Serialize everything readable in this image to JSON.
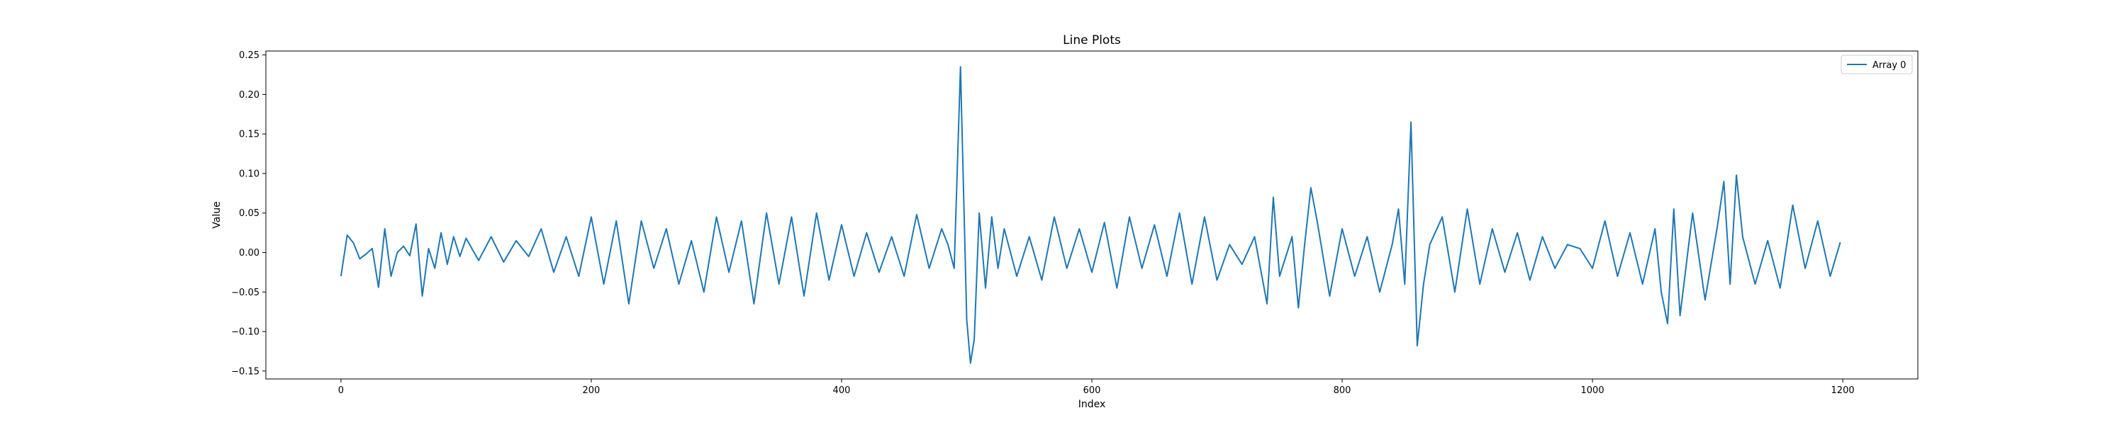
{
  "chart_data": {
    "type": "line",
    "title": "Line Plots",
    "xlabel": "Index",
    "ylabel": "Value",
    "xlim": [
      -60,
      1260
    ],
    "ylim": [
      -0.16,
      0.255
    ],
    "x_ticks": [
      0,
      200,
      400,
      600,
      800,
      1000,
      1200
    ],
    "y_ticks": [
      -0.15,
      -0.1,
      -0.05,
      0.0,
      0.05,
      0.1,
      0.15,
      0.2,
      0.25
    ],
    "x_tick_labels": [
      "0",
      "200",
      "400",
      "600",
      "800",
      "1000",
      "1200"
    ],
    "y_tick_labels": [
      "−0.15",
      "−0.10",
      "−0.05",
      "0.00",
      "0.05",
      "0.10",
      "0.15",
      "0.20",
      "0.25"
    ],
    "grid": false,
    "legend_position": "top-right",
    "colors": {
      "series": "#1f77b4",
      "axes": "#000000",
      "legend_border": "#cccccc"
    },
    "series": [
      {
        "name": "Array 0",
        "x": [
          0,
          5,
          10,
          15,
          20,
          25,
          30,
          35,
          40,
          45,
          50,
          55,
          60,
          65,
          70,
          75,
          80,
          85,
          90,
          95,
          100,
          110,
          120,
          130,
          140,
          150,
          160,
          170,
          180,
          190,
          200,
          210,
          220,
          230,
          240,
          250,
          260,
          270,
          280,
          290,
          300,
          310,
          320,
          330,
          340,
          350,
          360,
          370,
          380,
          390,
          400,
          410,
          420,
          430,
          440,
          450,
          460,
          470,
          480,
          485,
          490,
          495,
          500,
          503,
          506,
          510,
          515,
          520,
          525,
          530,
          540,
          550,
          560,
          570,
          580,
          590,
          600,
          610,
          620,
          630,
          640,
          650,
          660,
          670,
          680,
          690,
          700,
          710,
          720,
          730,
          740,
          745,
          750,
          760,
          765,
          770,
          775,
          780,
          790,
          800,
          810,
          820,
          830,
          840,
          845,
          850,
          855,
          860,
          865,
          870,
          880,
          890,
          900,
          910,
          920,
          930,
          940,
          950,
          960,
          970,
          980,
          990,
          1000,
          1010,
          1020,
          1030,
          1040,
          1050,
          1055,
          1060,
          1065,
          1070,
          1080,
          1090,
          1100,
          1105,
          1110,
          1115,
          1120,
          1130,
          1140,
          1150,
          1160,
          1170,
          1180,
          1190,
          1198
        ],
        "y": [
          -0.03,
          0.022,
          0.012,
          -0.008,
          -0.002,
          0.005,
          -0.044,
          0.03,
          -0.03,
          0.0,
          0.008,
          -0.004,
          0.036,
          -0.055,
          0.005,
          -0.02,
          0.025,
          -0.015,
          0.02,
          -0.005,
          0.018,
          -0.01,
          0.02,
          -0.012,
          0.015,
          -0.005,
          0.03,
          -0.025,
          0.02,
          -0.03,
          0.045,
          -0.04,
          0.04,
          -0.065,
          0.04,
          -0.02,
          0.03,
          -0.04,
          0.015,
          -0.05,
          0.045,
          -0.025,
          0.04,
          -0.065,
          0.05,
          -0.04,
          0.045,
          -0.055,
          0.05,
          -0.035,
          0.035,
          -0.03,
          0.025,
          -0.025,
          0.02,
          -0.03,
          0.048,
          -0.02,
          0.03,
          0.01,
          -0.02,
          0.235,
          -0.085,
          -0.14,
          -0.11,
          0.05,
          -0.045,
          0.045,
          -0.02,
          0.03,
          -0.03,
          0.02,
          -0.035,
          0.045,
          -0.02,
          0.03,
          -0.025,
          0.038,
          -0.045,
          0.045,
          -0.02,
          0.035,
          -0.03,
          0.05,
          -0.04,
          0.045,
          -0.035,
          0.01,
          -0.015,
          0.02,
          -0.065,
          0.07,
          -0.03,
          0.02,
          -0.07,
          0.01,
          0.082,
          0.04,
          -0.055,
          0.03,
          -0.03,
          0.02,
          -0.05,
          0.01,
          0.055,
          -0.04,
          0.165,
          -0.118,
          -0.04,
          0.01,
          0.045,
          -0.05,
          0.055,
          -0.04,
          0.03,
          -0.025,
          0.025,
          -0.035,
          0.02,
          -0.02,
          0.01,
          0.005,
          -0.02,
          0.04,
          -0.03,
          0.025,
          -0.04,
          0.03,
          -0.05,
          -0.09,
          0.055,
          -0.08,
          0.05,
          -0.06,
          0.035,
          0.09,
          -0.04,
          0.098,
          0.02,
          -0.04,
          0.015,
          -0.045,
          0.06,
          -0.02,
          0.04,
          -0.03,
          0.013
        ]
      }
    ]
  }
}
